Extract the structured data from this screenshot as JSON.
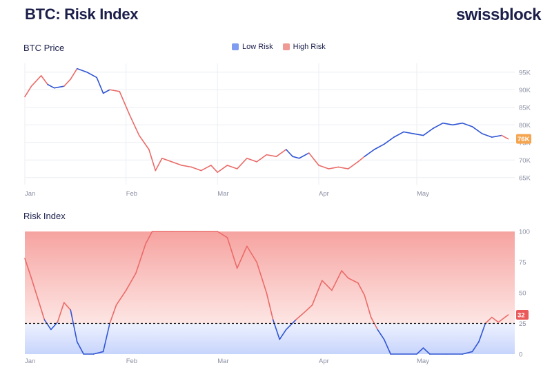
{
  "title": "BTC: Risk Index",
  "brand": "swissblock",
  "colors": {
    "low_risk": "#2f55d4",
    "high_risk": "#ea6b68",
    "badge_price": "#f5a550",
    "badge_risk": "#ea5a5a"
  },
  "legend": [
    {
      "label": "Low Risk",
      "color": "#7f9cf0"
    },
    {
      "label": "High Risk",
      "color": "#f09a96"
    }
  ],
  "chart_data": [
    {
      "type": "line",
      "title": "BTC Price",
      "x_ticks": [
        "Jan",
        "Feb",
        "Mar",
        "Apr",
        "May"
      ],
      "y_ticks": [
        "65K",
        "70K",
        "75K",
        "80K",
        "85K",
        "90K",
        "95K"
      ],
      "ylim": [
        63000,
        97500
      ],
      "current_value_label": "76K",
      "series": [
        {
          "values": [
            [
              "2025-01-01",
              88000,
              "high"
            ],
            [
              "2025-01-03",
              91000,
              "high"
            ],
            [
              "2025-01-06",
              94000,
              "high"
            ],
            [
              "2025-01-08",
              91500,
              "low"
            ],
            [
              "2025-01-10",
              90500,
              "low"
            ],
            [
              "2025-01-13",
              91000,
              "high"
            ],
            [
              "2025-01-15",
              93000,
              "high"
            ],
            [
              "2025-01-17",
              96000,
              "low"
            ],
            [
              "2025-01-20",
              95000,
              "low"
            ],
            [
              "2025-01-23",
              93500,
              "low"
            ],
            [
              "2025-01-25",
              89000,
              "low"
            ],
            [
              "2025-01-27",
              90000,
              "high"
            ],
            [
              "2025-01-30",
              89500,
              "high"
            ],
            [
              "2025-02-02",
              83000,
              "high"
            ],
            [
              "2025-02-05",
              77000,
              "high"
            ],
            [
              "2025-02-08",
              73000,
              "high"
            ],
            [
              "2025-02-10",
              67000,
              "high"
            ],
            [
              "2025-02-12",
              70500,
              "high"
            ],
            [
              "2025-02-15",
              69500,
              "high"
            ],
            [
              "2025-02-18",
              68500,
              "high"
            ],
            [
              "2025-02-21",
              68000,
              "high"
            ],
            [
              "2025-02-24",
              67000,
              "high"
            ],
            [
              "2025-02-27",
              68500,
              "high"
            ],
            [
              "2025-03-01",
              66500,
              "high"
            ],
            [
              "2025-03-04",
              68500,
              "high"
            ],
            [
              "2025-03-07",
              67500,
              "high"
            ],
            [
              "2025-03-10",
              70500,
              "high"
            ],
            [
              "2025-03-13",
              69500,
              "high"
            ],
            [
              "2025-03-16",
              71500,
              "high"
            ],
            [
              "2025-03-19",
              71000,
              "high"
            ],
            [
              "2025-03-22",
              73000,
              "low"
            ],
            [
              "2025-03-24",
              71000,
              "low"
            ],
            [
              "2025-03-26",
              70500,
              "low"
            ],
            [
              "2025-03-29",
              72000,
              "high"
            ],
            [
              "2025-04-01",
              68500,
              "high"
            ],
            [
              "2025-04-04",
              67500,
              "high"
            ],
            [
              "2025-04-07",
              68000,
              "high"
            ],
            [
              "2025-04-10",
              67500,
              "high"
            ],
            [
              "2025-04-13",
              69500,
              "high"
            ],
            [
              "2025-04-15",
              71000,
              "low"
            ],
            [
              "2025-04-18",
              73000,
              "low"
            ],
            [
              "2025-04-21",
              74500,
              "low"
            ],
            [
              "2025-04-24",
              76500,
              "low"
            ],
            [
              "2025-04-27",
              78000,
              "low"
            ],
            [
              "2025-04-30",
              77500,
              "low"
            ],
            [
              "2025-05-03",
              77000,
              "low"
            ],
            [
              "2025-05-06",
              79000,
              "low"
            ],
            [
              "2025-05-09",
              80500,
              "low"
            ],
            [
              "2025-05-12",
              80000,
              "low"
            ],
            [
              "2025-05-15",
              80500,
              "low"
            ],
            [
              "2025-05-18",
              79500,
              "low"
            ],
            [
              "2025-05-21",
              77500,
              "low"
            ],
            [
              "2025-05-24",
              76500,
              "low"
            ],
            [
              "2025-05-27",
              77000,
              "high"
            ],
            [
              "2025-05-29",
              76000,
              "high"
            ]
          ]
        }
      ]
    },
    {
      "type": "line",
      "title": "Risk Index",
      "x_ticks": [
        "Jan",
        "Feb",
        "Mar",
        "Apr",
        "May"
      ],
      "y_ticks": [
        "0",
        "25",
        "50",
        "75",
        "100"
      ],
      "ylim": [
        0,
        100
      ],
      "threshold": 25,
      "current_value_label": "32",
      "series": [
        {
          "values": [
            [
              "2025-01-01",
              78
            ],
            [
              "2025-01-03",
              62
            ],
            [
              "2025-01-05",
              45
            ],
            [
              "2025-01-07",
              28
            ],
            [
              "2025-01-09",
              20
            ],
            [
              "2025-01-11",
              26
            ],
            [
              "2025-01-13",
              42
            ],
            [
              "2025-01-15",
              36
            ],
            [
              "2025-01-17",
              10
            ],
            [
              "2025-01-19",
              0
            ],
            [
              "2025-01-22",
              0
            ],
            [
              "2025-01-25",
              2
            ],
            [
              "2025-01-27",
              25
            ],
            [
              "2025-01-29",
              40
            ],
            [
              "2025-02-01",
              52
            ],
            [
              "2025-02-04",
              66
            ],
            [
              "2025-02-07",
              90
            ],
            [
              "2025-02-09",
              100
            ],
            [
              "2025-02-15",
              100
            ],
            [
              "2025-02-22",
              100
            ],
            [
              "2025-03-01",
              100
            ],
            [
              "2025-03-04",
              95
            ],
            [
              "2025-03-07",
              70
            ],
            [
              "2025-03-10",
              88
            ],
            [
              "2025-03-13",
              75
            ],
            [
              "2025-03-16",
              50
            ],
            [
              "2025-03-18",
              28
            ],
            [
              "2025-03-20",
              12
            ],
            [
              "2025-03-22",
              20
            ],
            [
              "2025-03-25",
              28
            ],
            [
              "2025-03-28",
              35
            ],
            [
              "2025-03-30",
              40
            ],
            [
              "2025-04-02",
              60
            ],
            [
              "2025-04-05",
              52
            ],
            [
              "2025-04-08",
              68
            ],
            [
              "2025-04-10",
              62
            ],
            [
              "2025-04-13",
              58
            ],
            [
              "2025-04-15",
              48
            ],
            [
              "2025-04-17",
              30
            ],
            [
              "2025-04-19",
              20
            ],
            [
              "2025-04-21",
              12
            ],
            [
              "2025-04-23",
              0
            ],
            [
              "2025-05-01",
              0
            ],
            [
              "2025-05-03",
              5
            ],
            [
              "2025-05-05",
              0
            ],
            [
              "2025-05-10",
              0
            ],
            [
              "2025-05-15",
              0
            ],
            [
              "2025-05-18",
              2
            ],
            [
              "2025-05-20",
              10
            ],
            [
              "2025-05-22",
              25
            ],
            [
              "2025-05-24",
              30
            ],
            [
              "2025-05-26",
              26
            ],
            [
              "2025-05-29",
              32
            ]
          ]
        }
      ]
    }
  ]
}
